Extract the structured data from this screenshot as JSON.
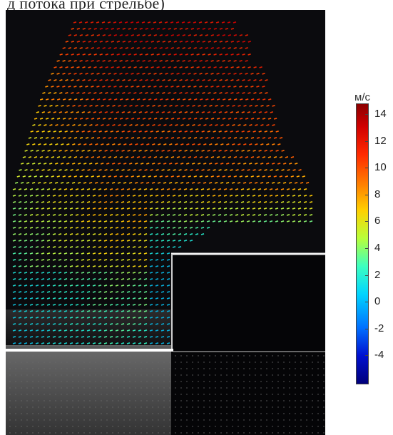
{
  "header": {
    "text": "д потока при стрельбе)"
  },
  "colorbar": {
    "unit": "м/с",
    "ticks": [
      "14",
      "12",
      "10",
      "8",
      "6",
      "4",
      "2",
      "0",
      "-2",
      "-4"
    ]
  },
  "colors": {
    "background": "#0b0b0e",
    "fast": "#d40000",
    "mid": "#ffd000",
    "slow": "#20e0c0",
    "wall": "#f0f0f0"
  }
}
